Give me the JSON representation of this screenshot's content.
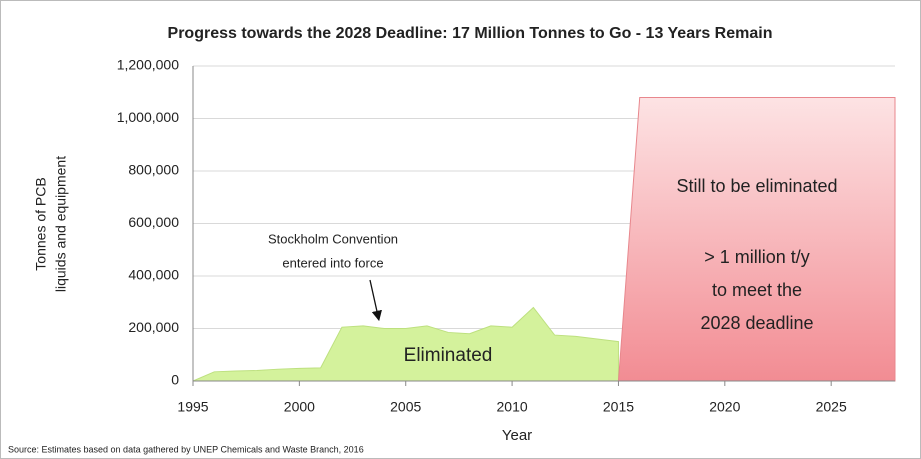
{
  "chart_data": {
    "type": "area",
    "title": "Progress towards the 2028 Deadline: 17 Million Tonnes to Go - 13 Years Remain",
    "xlabel": "Year",
    "ylabel": [
      "Tonnes of PCB",
      "liquids and equipment"
    ],
    "source": "Source: Estimates based on data gathered by UNEP Chemicals and Waste Branch, 2016",
    "xlim": [
      1995,
      2028
    ],
    "xticks": [
      1995,
      2000,
      2005,
      2010,
      2015,
      2020,
      2025
    ],
    "ylim": [
      0,
      1200000
    ],
    "yticks": [
      0,
      {
        "value": 200000,
        "label": "200,000"
      },
      {
        "value": 400000,
        "label": "400,000"
      },
      {
        "value": 600000,
        "label": "600,000"
      },
      {
        "value": 800000,
        "label": "800,000"
      },
      {
        "value": 1000000,
        "label": "1,000,000"
      },
      {
        "value": 1200000,
        "label": "1,200,000"
      }
    ],
    "grid": true,
    "series": [
      {
        "name": "Eliminated",
        "color": "#d4f29c",
        "x": [
          1995,
          1996,
          1997,
          1998,
          1999,
          2000,
          2001,
          2002,
          2003,
          2004,
          2005,
          2006,
          2007,
          2008,
          2009,
          2010,
          2011,
          2012,
          2013,
          2014,
          2015
        ],
        "values": [
          0,
          35000,
          38000,
          40000,
          45000,
          48000,
          50000,
          205000,
          210000,
          200000,
          200000,
          210000,
          185000,
          180000,
          210000,
          205000,
          280000,
          175000,
          170000,
          160000,
          150000
        ]
      },
      {
        "name": "Still to be eliminated",
        "color": "#f4a3a8",
        "x": [
          2015,
          2016,
          2028
        ],
        "values": [
          0,
          1080000,
          1080000
        ]
      }
    ],
    "annotations": [
      {
        "lines": [
          "Stockholm Convention",
          "entered into force"
        ]
      },
      {
        "lines": [
          "> 1 million t/y",
          "to meet the",
          "2028 deadline"
        ]
      }
    ]
  }
}
